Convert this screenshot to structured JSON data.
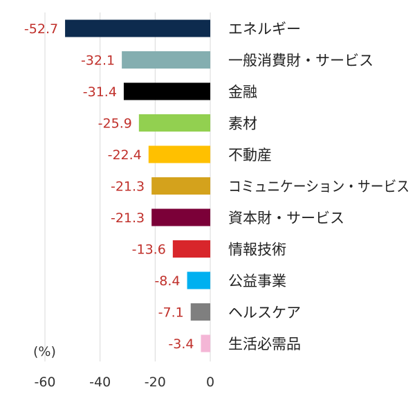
{
  "chart_data": {
    "type": "bar",
    "orientation": "horizontal",
    "unit_label": "(%)",
    "xlim": [
      -60,
      0
    ],
    "xticks": [
      -60,
      -40,
      -20,
      0
    ],
    "grid": true,
    "categories": [
      "エネルギー",
      "一般消費財・サービス",
      "金融",
      "素材",
      "不動産",
      "コミュニケーション・サービス",
      "資本財・サービス",
      "情報技術",
      "公益事業",
      "ヘルスケア",
      "生活必需品"
    ],
    "values": [
      -52.7,
      -32.1,
      -31.4,
      -25.9,
      -22.4,
      -21.3,
      -21.3,
      -13.6,
      -8.4,
      -7.1,
      -3.4
    ],
    "value_labels": [
      "-52.7",
      "-32.1",
      "-31.4",
      "-25.9",
      "-22.4",
      "-21.3",
      "-21.3",
      "-13.6",
      "-8.4",
      "-7.1",
      "-3.4"
    ],
    "colors": [
      "#0d2b4e",
      "#84aeb0",
      "#000000",
      "#92d050",
      "#ffc000",
      "#d4a21c",
      "#7b0038",
      "#d8262b",
      "#00b0f0",
      "#7f7f7f",
      "#f4b6d6"
    ]
  }
}
